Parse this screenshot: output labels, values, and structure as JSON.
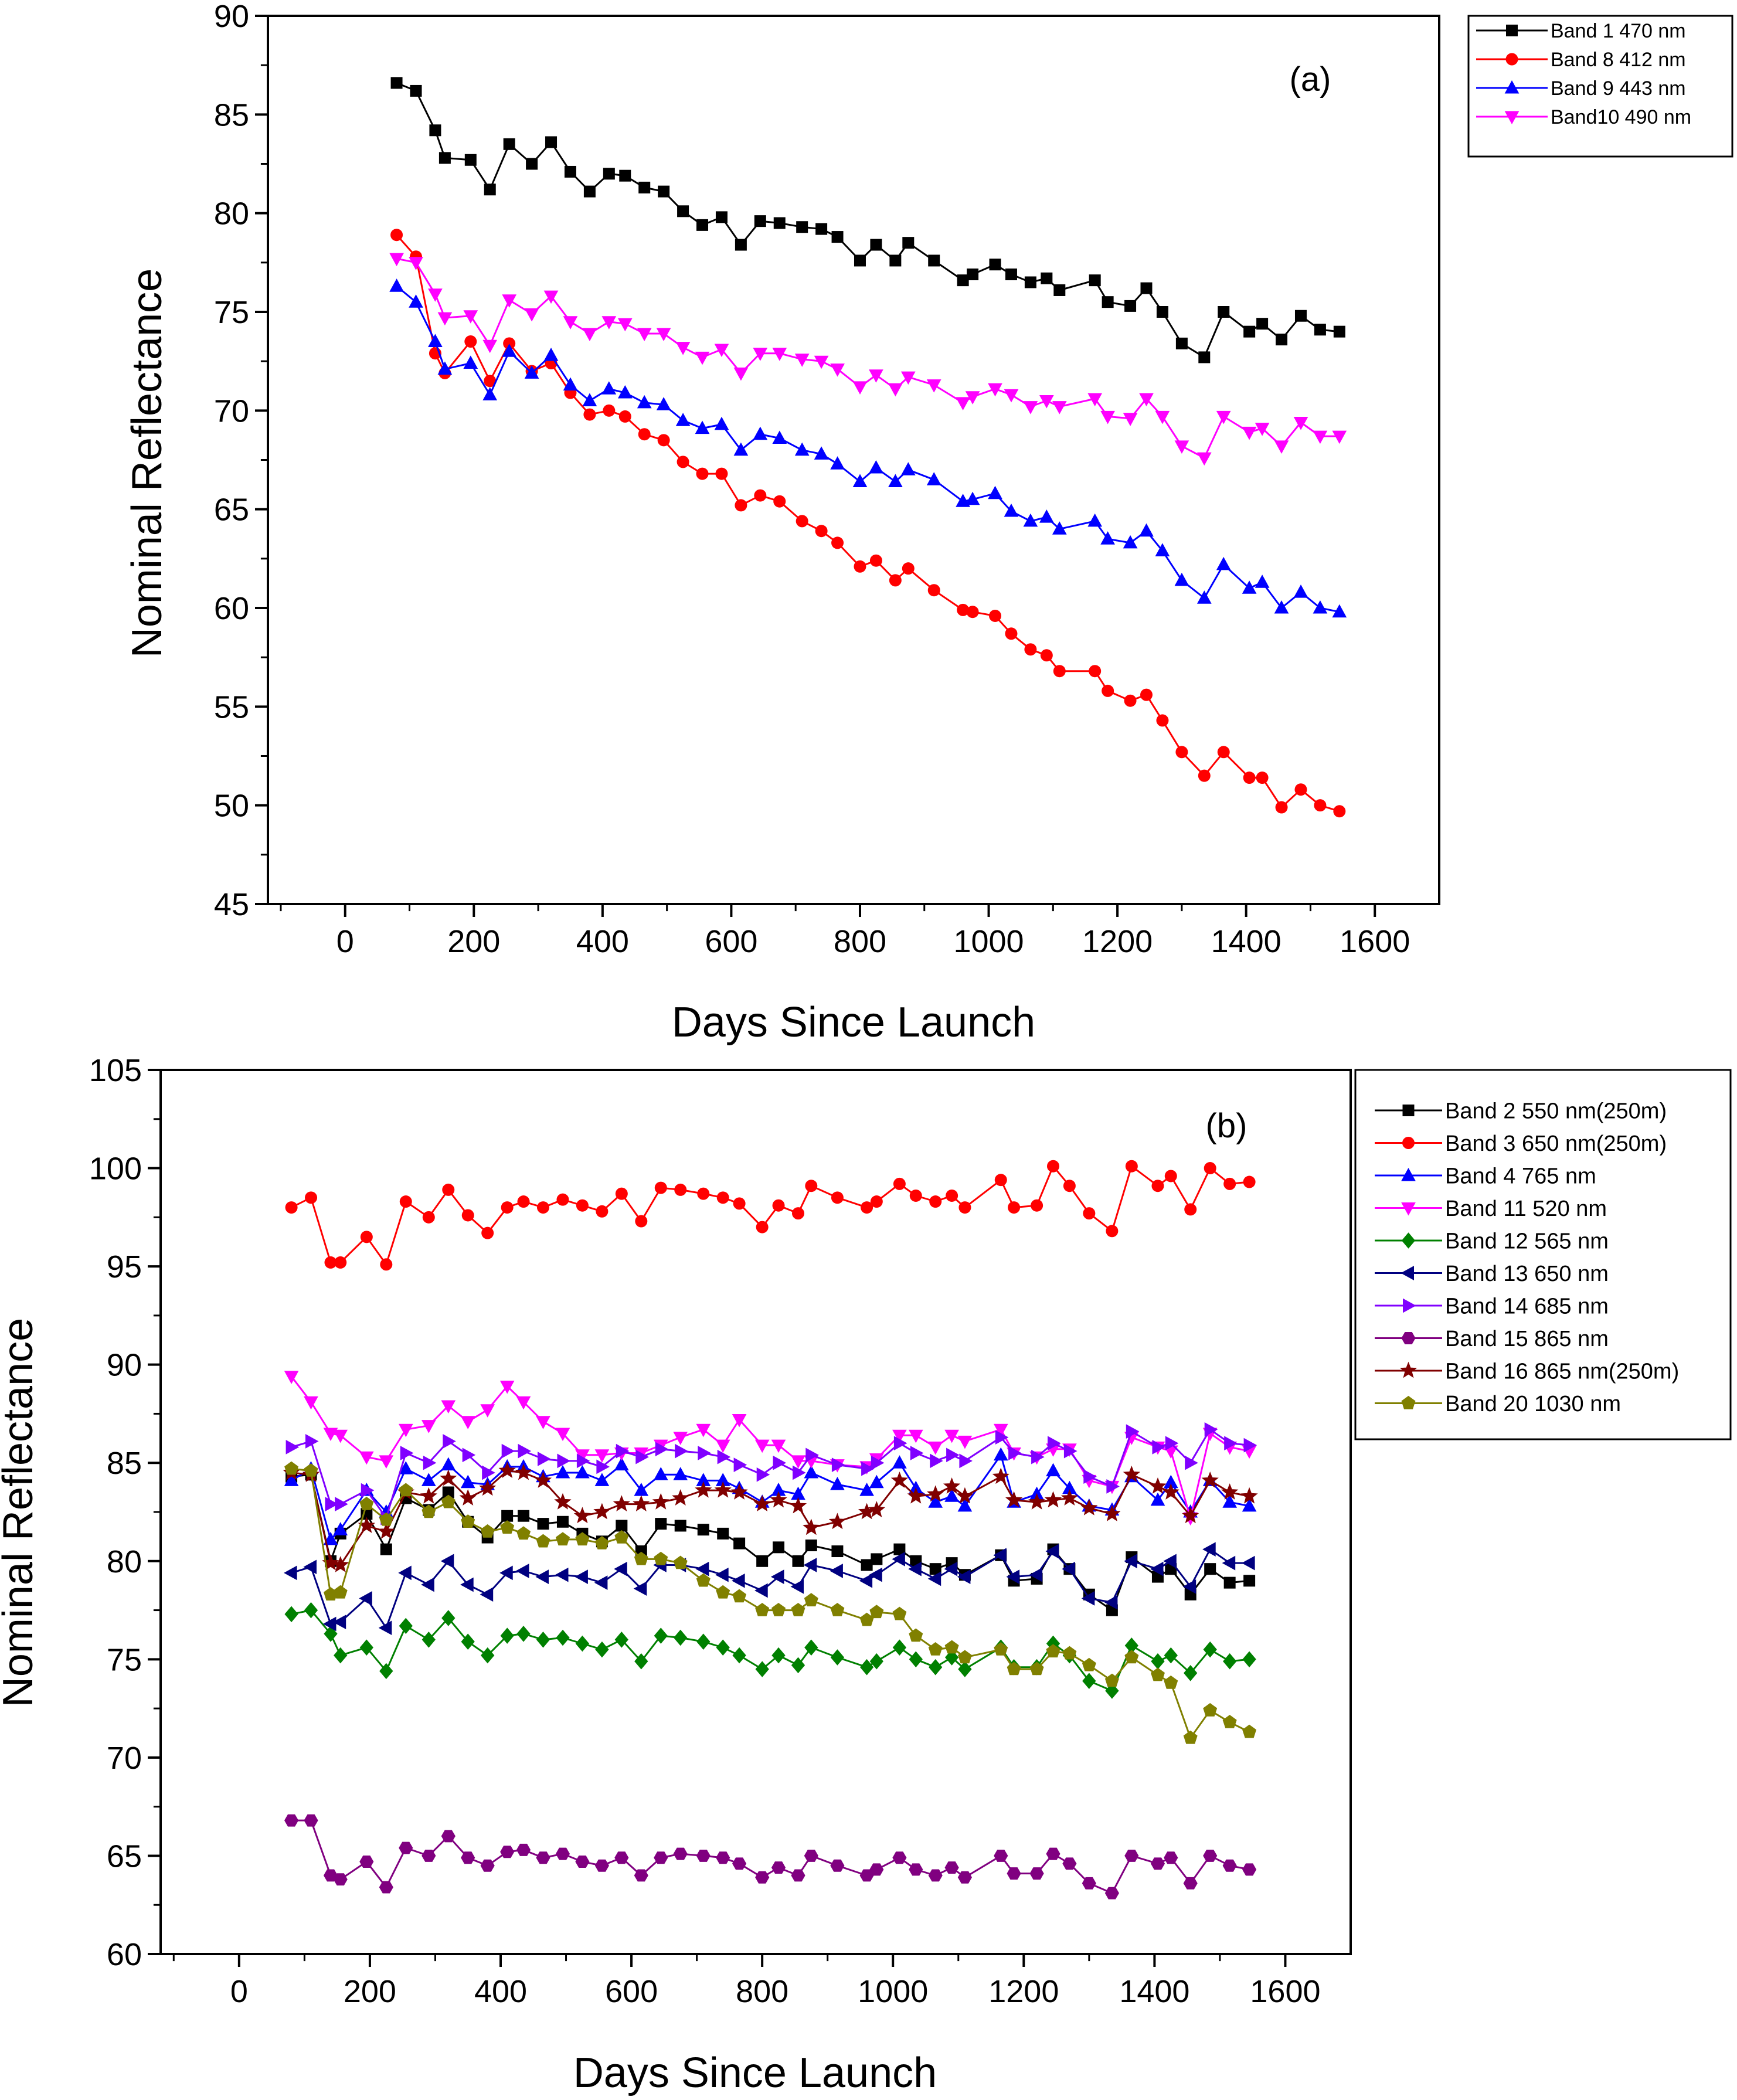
{
  "chart_data": [
    {
      "id": "a",
      "type": "line",
      "panel_label": "(a)",
      "xlabel": "Days Since Launch",
      "ylabel": "Nominal Reflectance",
      "xlim": [
        -120,
        1700
      ],
      "ylim": [
        45,
        90
      ],
      "xticks": [
        0,
        200,
        400,
        600,
        800,
        1000,
        1200,
        1400,
        1600
      ],
      "yticks": [
        45,
        50,
        55,
        60,
        65,
        70,
        75,
        80,
        85,
        90
      ],
      "grid": false,
      "legend_position": "top-right-outside",
      "x": [
        80,
        110,
        140,
        155,
        195,
        225,
        255,
        290,
        320,
        350,
        380,
        410,
        435,
        465,
        495,
        525,
        555,
        585,
        615,
        645,
        675,
        710,
        740,
        765,
        800,
        825,
        855,
        875,
        915,
        960,
        975,
        1010,
        1035,
        1065,
        1090,
        1110,
        1165,
        1185,
        1220,
        1245,
        1270,
        1300,
        1335,
        1365,
        1405,
        1425,
        1455,
        1485,
        1515,
        1545
      ],
      "series": [
        {
          "name": "Band 1 470 nm",
          "color": "#000000",
          "marker": "square",
          "values": [
            86.6,
            86.2,
            84.2,
            82.8,
            82.7,
            81.2,
            83.5,
            82.5,
            83.6,
            82.1,
            81.1,
            82.0,
            81.9,
            81.3,
            81.1,
            80.1,
            79.4,
            79.8,
            78.4,
            79.6,
            79.5,
            79.3,
            79.2,
            78.8,
            77.6,
            78.4,
            77.6,
            78.5,
            77.6,
            76.6,
            76.9,
            77.4,
            76.9,
            76.5,
            76.7,
            76.1,
            76.6,
            75.5,
            75.3,
            76.2,
            75.0,
            73.4,
            72.7,
            75.0,
            74.0,
            74.4,
            73.6,
            74.8,
            74.1,
            74.0
          ]
        },
        {
          "name": "Band 8 412 nm",
          "color": "#ff0000",
          "marker": "circle",
          "values": [
            78.9,
            77.8,
            72.9,
            71.9,
            73.5,
            71.5,
            73.4,
            72.0,
            72.4,
            70.9,
            69.8,
            70.0,
            69.7,
            68.8,
            68.5,
            67.4,
            66.8,
            66.8,
            65.2,
            65.7,
            65.4,
            64.4,
            63.9,
            63.3,
            62.1,
            62.4,
            61.4,
            62.0,
            60.9,
            59.9,
            59.8,
            59.6,
            58.7,
            57.9,
            57.6,
            56.8,
            56.8,
            55.8,
            55.3,
            55.6,
            54.3,
            52.7,
            51.5,
            52.7,
            51.4,
            51.4,
            49.9,
            50.8,
            50.0,
            49.7
          ]
        },
        {
          "name": "Band 9 443 nm",
          "color": "#0000ff",
          "marker": "triangle-up",
          "values": [
            76.3,
            75.5,
            73.5,
            72.1,
            72.4,
            70.8,
            73.0,
            71.9,
            72.8,
            71.3,
            70.5,
            71.1,
            70.9,
            70.4,
            70.3,
            69.5,
            69.1,
            69.3,
            68.0,
            68.8,
            68.6,
            68.0,
            67.8,
            67.3,
            66.4,
            67.1,
            66.4,
            67.0,
            66.5,
            65.4,
            65.5,
            65.8,
            64.9,
            64.4,
            64.6,
            64.0,
            64.4,
            63.5,
            63.3,
            63.9,
            62.9,
            61.4,
            60.5,
            62.2,
            61.0,
            61.3,
            60.0,
            60.8,
            60.0,
            59.8
          ]
        },
        {
          "name": "Band10 490 nm",
          "color": "#ff00ff",
          "marker": "triangle-down",
          "values": [
            77.7,
            77.5,
            75.9,
            74.7,
            74.8,
            73.3,
            75.6,
            74.9,
            75.8,
            74.5,
            73.9,
            74.5,
            74.4,
            73.9,
            73.9,
            73.2,
            72.7,
            73.1,
            71.9,
            72.9,
            72.9,
            72.6,
            72.5,
            72.1,
            71.2,
            71.8,
            71.1,
            71.7,
            71.3,
            70.4,
            70.7,
            71.1,
            70.8,
            70.2,
            70.5,
            70.2,
            70.6,
            69.7,
            69.6,
            70.6,
            69.7,
            68.2,
            67.6,
            69.7,
            68.9,
            69.1,
            68.2,
            69.4,
            68.7,
            68.7
          ]
        }
      ]
    },
    {
      "id": "b",
      "type": "line",
      "panel_label": "(b)",
      "xlabel": "Days Since Launch",
      "ylabel": "Nominal Reflectance",
      "xlim": [
        -120,
        1700
      ],
      "ylim": [
        60,
        105
      ],
      "xticks": [
        0,
        200,
        400,
        600,
        800,
        1000,
        1200,
        1400,
        1600
      ],
      "yticks": [
        60,
        65,
        70,
        75,
        80,
        85,
        90,
        95,
        100,
        105
      ],
      "grid": false,
      "legend_position": "top-right-outside",
      "x": [
        80,
        110,
        140,
        155,
        195,
        225,
        255,
        290,
        320,
        350,
        380,
        410,
        435,
        465,
        495,
        525,
        555,
        585,
        615,
        645,
        675,
        710,
        740,
        765,
        800,
        825,
        855,
        875,
        915,
        960,
        975,
        1010,
        1035,
        1065,
        1090,
        1110,
        1165,
        1185,
        1220,
        1245,
        1270,
        1300,
        1335,
        1365,
        1405,
        1425,
        1455,
        1485,
        1515,
        1545
      ],
      "series": [
        {
          "name": "Band 2 550 nm(250m)",
          "color": "#000000",
          "marker": "square",
          "values": [
            84.3,
            84.4,
            80.0,
            81.4,
            82.4,
            80.6,
            83.2,
            82.6,
            83.5,
            82.0,
            81.2,
            82.3,
            82.3,
            81.9,
            82.0,
            81.4,
            81.0,
            81.8,
            80.5,
            81.9,
            81.8,
            81.6,
            81.4,
            80.9,
            80.0,
            80.7,
            80.0,
            80.8,
            80.5,
            79.8,
            80.1,
            80.6,
            80.0,
            79.6,
            79.9,
            79.3,
            80.3,
            79.0,
            79.1,
            80.6,
            79.6,
            78.3,
            77.5,
            80.2,
            79.2,
            79.6,
            78.3,
            79.6,
            78.9,
            79.0
          ]
        },
        {
          "name": "Band 3 650 nm(250m)",
          "color": "#ff0000",
          "marker": "circle",
          "values": [
            98.0,
            98.5,
            95.2,
            95.2,
            96.5,
            95.1,
            98.3,
            97.5,
            98.9,
            97.6,
            96.7,
            98.0,
            98.3,
            98.0,
            98.4,
            98.1,
            97.8,
            98.7,
            97.3,
            99.0,
            98.9,
            98.7,
            98.5,
            98.2,
            97.0,
            98.1,
            97.7,
            99.1,
            98.5,
            98.0,
            98.3,
            99.2,
            98.6,
            98.3,
            98.6,
            98.0,
            99.4,
            98.0,
            98.1,
            100.1,
            99.1,
            97.7,
            96.8,
            100.1,
            99.1,
            99.6,
            97.9,
            100.0,
            99.2,
            99.3
          ]
        },
        {
          "name": "Band 4 765 nm",
          "color": "#0000ff",
          "marker": "triangle-up",
          "values": [
            84.1,
            84.7,
            81.1,
            81.6,
            83.6,
            82.5,
            84.7,
            84.1,
            84.9,
            84.0,
            83.9,
            84.8,
            84.8,
            84.3,
            84.5,
            84.5,
            84.1,
            84.9,
            83.6,
            84.4,
            84.4,
            84.1,
            84.1,
            83.7,
            83.0,
            83.6,
            83.4,
            84.5,
            83.9,
            83.6,
            84.0,
            85.0,
            83.7,
            83.0,
            83.3,
            82.8,
            85.4,
            83.0,
            83.4,
            84.6,
            83.7,
            82.8,
            82.6,
            84.3,
            83.1,
            84.0,
            82.5,
            84.1,
            83.0,
            82.8
          ]
        },
        {
          "name": "Band 11 520 nm",
          "color": "#ff00ff",
          "marker": "triangle-down",
          "values": [
            89.4,
            88.1,
            86.5,
            86.4,
            85.3,
            85.1,
            86.7,
            86.9,
            87.9,
            87.1,
            87.7,
            88.9,
            88.1,
            87.1,
            86.5,
            85.4,
            85.4,
            85.5,
            85.5,
            85.9,
            86.3,
            86.7,
            85.9,
            87.2,
            85.9,
            85.9,
            85.1,
            85.1,
            84.9,
            84.8,
            85.2,
            86.4,
            86.4,
            85.8,
            86.4,
            86.1,
            86.7,
            85.5,
            85.3,
            85.7,
            85.7,
            84.1,
            83.8,
            86.3,
            85.8,
            85.6,
            82.2,
            86.5,
            85.8,
            85.6
          ]
        },
        {
          "name": "Band 12 565 nm",
          "color": "#008000",
          "marker": "diamond",
          "values": [
            77.3,
            77.5,
            76.3,
            75.2,
            75.6,
            74.4,
            76.7,
            76.0,
            77.1,
            75.9,
            75.2,
            76.2,
            76.3,
            76.0,
            76.1,
            75.8,
            75.5,
            76.0,
            74.9,
            76.2,
            76.1,
            75.9,
            75.6,
            75.2,
            74.5,
            75.2,
            74.7,
            75.6,
            75.1,
            74.6,
            74.9,
            75.6,
            75.0,
            74.6,
            75.1,
            74.5,
            75.6,
            74.6,
            74.6,
            75.8,
            75.2,
            73.9,
            73.4,
            75.7,
            74.9,
            75.2,
            74.3,
            75.5,
            74.9,
            75.0
          ]
        },
        {
          "name": "Band 13 650 nm",
          "color": "#000080",
          "marker": "triangle-left",
          "values": [
            79.4,
            79.7,
            76.8,
            76.9,
            78.1,
            76.6,
            79.4,
            78.8,
            80.0,
            78.8,
            78.3,
            79.4,
            79.5,
            79.2,
            79.3,
            79.2,
            78.9,
            79.6,
            78.6,
            79.8,
            79.8,
            79.6,
            79.3,
            79.0,
            78.5,
            79.2,
            78.7,
            79.8,
            79.5,
            79.0,
            79.3,
            80.1,
            79.6,
            79.1,
            79.6,
            79.2,
            80.3,
            79.2,
            79.3,
            80.5,
            79.6,
            78.1,
            77.9,
            80.0,
            79.6,
            80.0,
            78.7,
            80.6,
            79.9,
            79.9
          ]
        },
        {
          "name": "Band 14 685 nm",
          "color": "#8000ff",
          "marker": "triangle-right",
          "values": [
            85.8,
            86.1,
            82.9,
            82.9,
            83.6,
            82.2,
            85.5,
            85.0,
            86.1,
            85.4,
            84.5,
            85.6,
            85.6,
            85.2,
            85.1,
            85.1,
            84.8,
            85.6,
            85.3,
            85.7,
            85.6,
            85.5,
            85.3,
            84.9,
            84.4,
            85.0,
            84.5,
            85.4,
            84.9,
            84.7,
            85.0,
            86.0,
            85.5,
            85.1,
            85.4,
            85.1,
            86.3,
            85.5,
            85.3,
            86.0,
            85.6,
            84.3,
            83.8,
            86.6,
            85.8,
            86.0,
            85.0,
            86.7,
            86.0,
            85.9
          ]
        },
        {
          "name": "Band 15 865 nm",
          "color": "#800080",
          "marker": "hexagon",
          "values": [
            66.8,
            66.8,
            64.0,
            63.8,
            64.7,
            63.4,
            65.4,
            65.0,
            66.0,
            64.9,
            64.5,
            65.2,
            65.3,
            64.9,
            65.1,
            64.7,
            64.5,
            64.9,
            64.0,
            64.9,
            65.1,
            65.0,
            64.9,
            64.6,
            63.9,
            64.4,
            64.0,
            65.0,
            64.5,
            64.0,
            64.3,
            64.9,
            64.3,
            64.0,
            64.4,
            63.9,
            65.0,
            64.1,
            64.1,
            65.1,
            64.6,
            63.6,
            63.1,
            65.0,
            64.6,
            64.9,
            63.6,
            65.0,
            64.5,
            64.3
          ]
        },
        {
          "name": "Band 16 865 nm(250m)",
          "color": "#800000",
          "marker": "star",
          "values": [
            84.5,
            84.4,
            79.9,
            79.8,
            81.8,
            81.5,
            83.5,
            83.3,
            84.2,
            83.2,
            83.7,
            84.6,
            84.5,
            84.1,
            83.0,
            82.3,
            82.5,
            82.9,
            82.9,
            83.0,
            83.2,
            83.6,
            83.6,
            83.5,
            82.9,
            83.1,
            82.8,
            81.7,
            82.0,
            82.5,
            82.6,
            84.1,
            83.3,
            83.4,
            83.8,
            83.3,
            84.3,
            83.1,
            83.0,
            83.1,
            83.2,
            82.7,
            82.4,
            84.4,
            83.8,
            83.5,
            82.3,
            84.1,
            83.5,
            83.3
          ]
        },
        {
          "name": "Band 20 1030 nm",
          "color": "#808000",
          "marker": "pentagon",
          "values": [
            84.7,
            84.6,
            78.3,
            78.4,
            82.9,
            82.1,
            83.6,
            82.5,
            83.0,
            82.0,
            81.5,
            81.7,
            81.4,
            81.0,
            81.1,
            81.1,
            80.9,
            81.2,
            80.1,
            80.1,
            79.9,
            79.0,
            78.4,
            78.2,
            77.5,
            77.5,
            77.5,
            78.0,
            77.5,
            77.0,
            77.4,
            77.3,
            76.2,
            75.5,
            75.6,
            75.1,
            75.5,
            74.5,
            74.5,
            75.4,
            75.3,
            74.7,
            73.9,
            75.1,
            74.2,
            73.8,
            71.0,
            72.4,
            71.8,
            71.3
          ]
        }
      ]
    }
  ]
}
